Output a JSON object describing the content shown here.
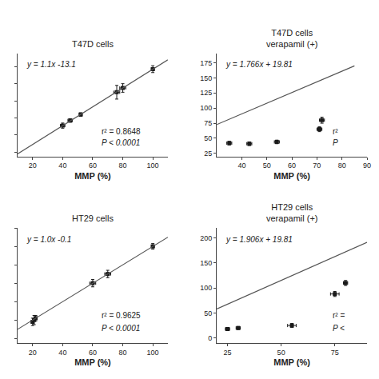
{
  "chart_data": [
    {
      "type": "scatter",
      "title": "T47D cells",
      "x_label": "MMP (%)",
      "xlim": [
        10,
        110
      ],
      "ylim": [
        -5,
        115
      ],
      "xticks": [
        20,
        40,
        60,
        80,
        100
      ],
      "yticks": [
        0,
        20,
        40,
        60,
        80,
        100
      ],
      "grid": false,
      "tick_labels": "x",
      "annotations": [
        "y = 1.1x -13.1",
        "r² = 0.8648",
        "P < 0.0001"
      ],
      "series": [
        {
          "type": "scatter",
          "marker": "square",
          "color": "#1a1a1a",
          "x": [
            40,
            45,
            52,
            76,
            80,
            100
          ],
          "values": [
            31,
            37,
            44,
            70,
            75,
            97
          ],
          "xerr": [
            1.5,
            1.5,
            1.0,
            2,
            2,
            1
          ],
          "yerr": [
            3,
            2,
            2,
            8,
            5,
            4
          ]
        },
        {
          "type": "line",
          "line_style": "solid",
          "color": "#555555",
          "x": [
            10,
            110
          ],
          "values": [
            -2.1,
            107.9
          ]
        }
      ]
    },
    {
      "type": "scatter",
      "title": "T47D cells\nverapamil (+)",
      "x_label": "MMP (%)",
      "xlim": [
        30,
        90
      ],
      "ylim": [
        20,
        190
      ],
      "xticks": [
        40,
        50,
        60,
        70,
        80,
        90
      ],
      "yticks": [
        25,
        50,
        75,
        100,
        125,
        150,
        175
      ],
      "grid": false,
      "annotations": [
        "y = 1.766x + 19.81",
        "r²",
        "P"
      ],
      "series": [
        {
          "type": "scatter",
          "marker": "square",
          "color": "#1a1a1a",
          "x": [
            35,
            43,
            54,
            71,
            72
          ],
          "values": [
            42,
            41,
            44,
            65,
            80
          ],
          "xerr": [
            1,
            1,
            1,
            1,
            1
          ],
          "yerr": [
            3,
            3,
            3,
            4,
            5
          ]
        },
        {
          "type": "line",
          "line_style": "solid",
          "color": "#555555",
          "x": [
            30,
            85
          ],
          "values": [
            72.79,
            169.92
          ]
        }
      ]
    },
    {
      "type": "scatter",
      "title": "HT29 cells",
      "x_label": "MMP (%)",
      "xlim": [
        10,
        110
      ],
      "ylim": [
        -5,
        120
      ],
      "xticks": [
        20,
        40,
        60,
        80,
        100
      ],
      "yticks": [
        0,
        20,
        40,
        60,
        80,
        100,
        120
      ],
      "grid": false,
      "tick_labels": "x",
      "annotations": [
        "y = 1.0x -0.1",
        "r² = 0.9625",
        "P < 0.0001"
      ],
      "series": [
        {
          "type": "scatter",
          "marker": "square",
          "color": "#1a1a1a",
          "x": [
            20,
            21,
            22,
            60,
            70,
            100
          ],
          "values": [
            18,
            20,
            22,
            60,
            70,
            100
          ],
          "xerr": [
            1,
            1,
            1,
            2,
            2,
            1
          ],
          "yerr": [
            4,
            5,
            3,
            4,
            4,
            3
          ]
        },
        {
          "type": "line",
          "line_style": "solid",
          "color": "#555555",
          "x": [
            10,
            110
          ],
          "values": [
            9.9,
            109.9
          ]
        }
      ]
    },
    {
      "type": "scatter",
      "title": "HT29 cells\nverapamil (+)",
      "x_label": "MMP (%)",
      "xlim": [
        20,
        90
      ],
      "ylim": [
        -10,
        220
      ],
      "xticks": [
        25,
        50,
        75
      ],
      "yticks": [
        0,
        50,
        100,
        150,
        200
      ],
      "grid": false,
      "annotations": [
        "y = 1.906x + 19.81",
        "r² =",
        "P <"
      ],
      "series": [
        {
          "type": "scatter",
          "marker": "square",
          "color": "#1a1a1a",
          "x": [
            25,
            30,
            55,
            75,
            80
          ],
          "values": [
            18,
            20,
            25,
            88,
            110
          ],
          "xerr": [
            1,
            1,
            2,
            2,
            1
          ],
          "yerr": [
            3,
            3,
            4,
            5,
            5
          ]
        },
        {
          "type": "line",
          "line_style": "solid",
          "color": "#555555",
          "x": [
            20,
            90
          ],
          "values": [
            57.93,
            191.35
          ]
        }
      ]
    }
  ]
}
